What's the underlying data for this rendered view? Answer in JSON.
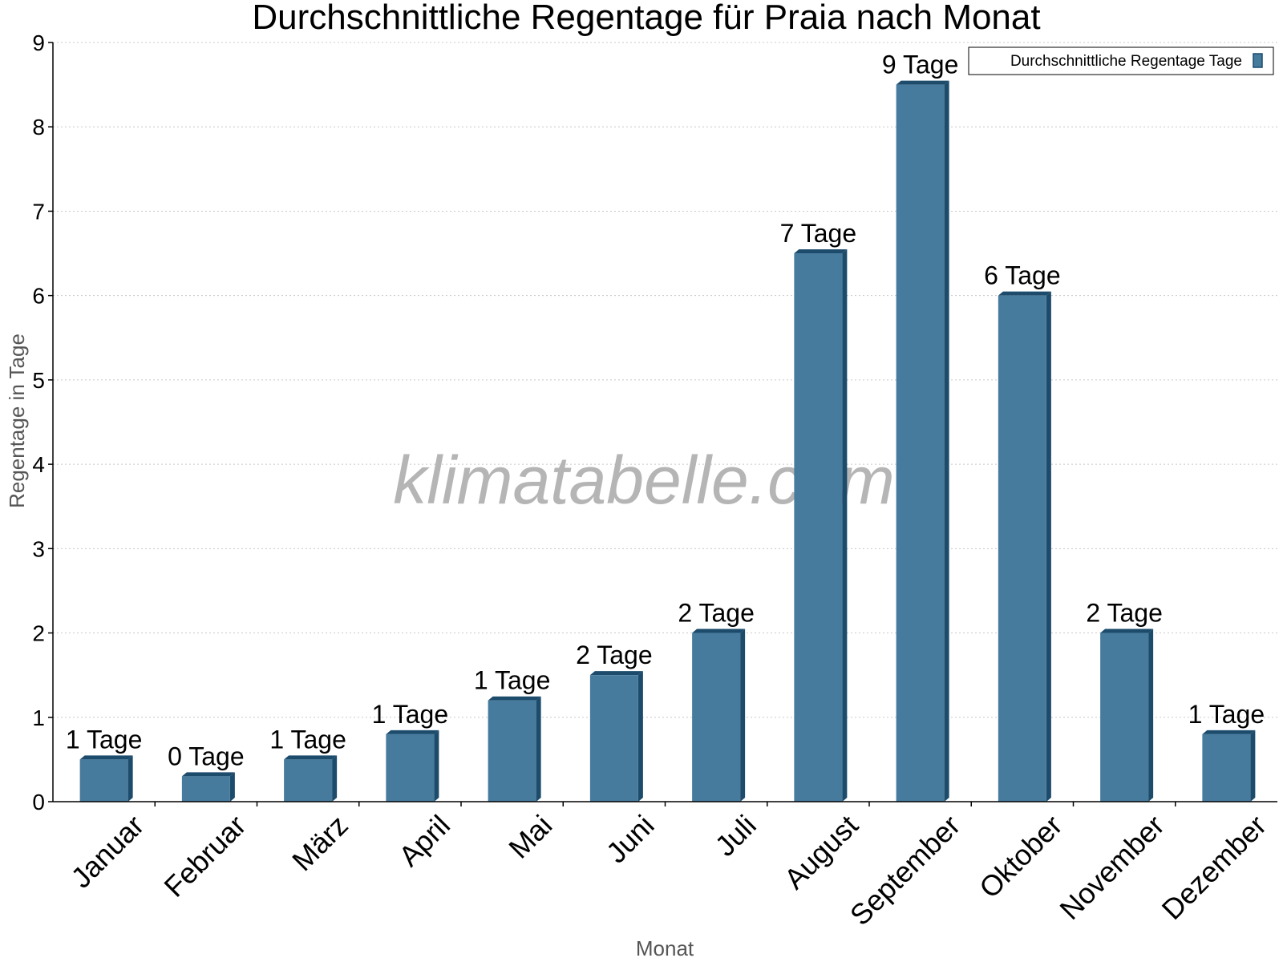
{
  "chart_data": {
    "type": "bar",
    "title": "Durchschnittliche Regentage für Praia nach Monat",
    "xlabel": "Monat",
    "ylabel": "Regentage in Tage",
    "ylim": [
      0,
      9
    ],
    "yticks": [
      0,
      1,
      2,
      3,
      4,
      5,
      6,
      7,
      8,
      9
    ],
    "grid": true,
    "legend_position": "top-right",
    "categories": [
      "Januar",
      "Februar",
      "März",
      "April",
      "Mai",
      "Juni",
      "Juli",
      "August",
      "September",
      "Oktober",
      "November",
      "Dezember"
    ],
    "series": [
      {
        "name": "Durchschnittliche Regentage Tage",
        "color": "#467b9d",
        "side_color": "#1c4b6c",
        "values": [
          0.5,
          0.3,
          0.5,
          0.8,
          1.2,
          1.5,
          2.0,
          6.5,
          8.5,
          6.0,
          2.0,
          0.8
        ],
        "labels": [
          "1 Tage",
          "0 Tage",
          "1 Tage",
          "1 Tage",
          "1 Tage",
          "2 Tage",
          "2 Tage",
          "7 Tage",
          "9 Tage",
          "6 Tage",
          "2 Tage",
          "1 Tage"
        ]
      }
    ]
  },
  "watermark": "klimatabelle.com"
}
